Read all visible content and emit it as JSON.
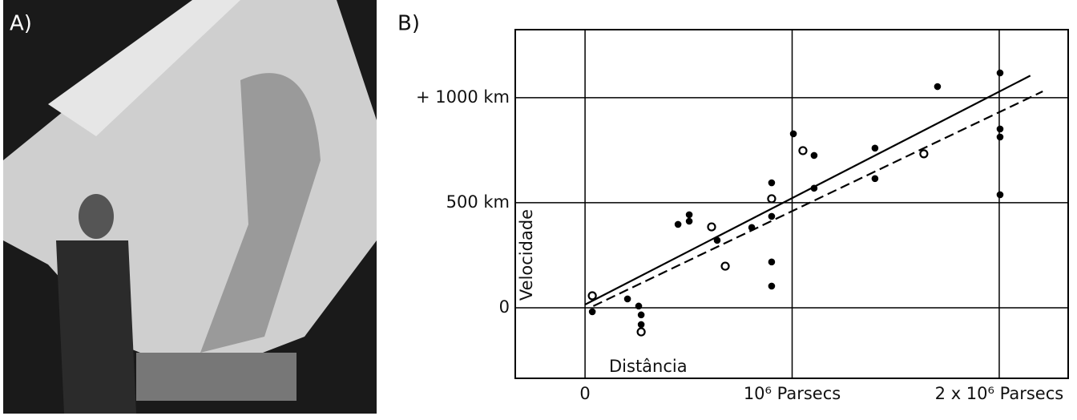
{
  "panel_labels": [
    "A)",
    "B)"
  ],
  "chart_data": {
    "type": "scatter",
    "x_label": "Distância",
    "y_label": "Velocidade",
    "xlim": [
      -337000,
      2333000
    ],
    "ylim": [
      -336,
      1324
    ],
    "xticks": [
      0,
      {
        "value": 1000000,
        "label": "10⁶ Parsecs"
      },
      {
        "value": 2000000,
        "label": "2 x 10⁶ Parsecs"
      }
    ],
    "yticks": [
      0,
      {
        "value": 500,
        "label": "500 km"
      },
      {
        "value": 1000,
        "label": "+ 1000 km"
      }
    ],
    "grid": true,
    "color": "#000000",
    "series": [
      {
        "marker": "filled",
        "x": [
          35000,
          205000,
          259000,
          271000,
          271000,
          449000,
          503000,
          503000,
          638000,
          805000,
          901000,
          901000,
          901000,
          901000,
          1006000,
          1106000,
          1106000,
          1400000,
          1400000,
          1702000,
          2004000,
          2004000,
          2004000,
          2004000
        ],
        "values": [
          -19,
          42,
          8,
          -34,
          -80,
          397,
          443,
          412,
          321,
          382,
          595,
          435,
          218,
          103,
          828,
          725,
          569,
          760,
          615,
          1053,
          1118,
          851,
          813,
          538
        ]
      },
      {
        "marker": "open",
        "x": [
          35000,
          271000,
          611000,
          677000,
          901000,
          1052000,
          1636000
        ],
        "values": [
          57,
          -115,
          385,
          198,
          519,
          748,
          733
        ]
      }
    ],
    "lines": [
      {
        "style": "solid",
        "x": [
          0,
          2150000
        ],
        "values": [
          15,
          1105
        ]
      },
      {
        "style": "dashed",
        "x": [
          40000,
          2210000
        ],
        "values": [
          8,
          1030
        ]
      }
    ]
  }
}
